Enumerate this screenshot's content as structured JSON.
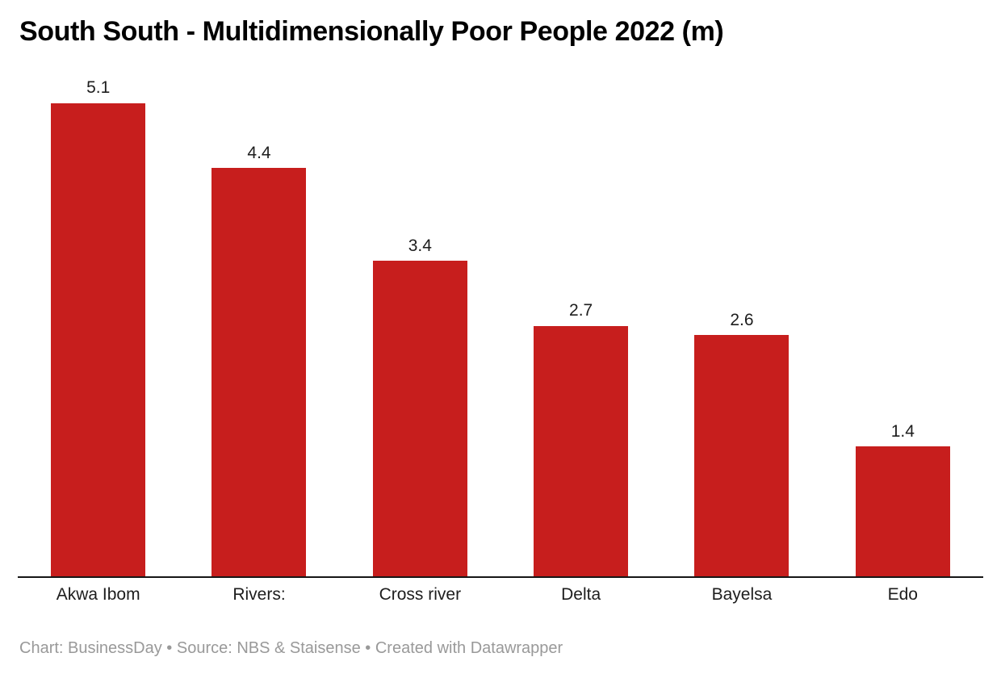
{
  "chart_data": {
    "type": "bar",
    "title": "South South - Multidimensionally Poor People 2022 (m)",
    "categories": [
      "Akwa Ibom",
      "Rivers:",
      "Cross river",
      "Delta",
      "Bayelsa",
      "Edo"
    ],
    "values": [
      5.1,
      4.4,
      3.4,
      2.7,
      2.6,
      1.4
    ],
    "xlabel": "",
    "ylabel": "",
    "ylim": [
      0,
      5.4
    ],
    "grid": false,
    "legend": false,
    "value_labels": true,
    "colors": {
      "bar": "#c71e1d",
      "axis": "#161616",
      "label_text": "#1d1d1d",
      "footer_text": "#999999"
    }
  },
  "footer": {
    "attribution": "Chart: BusinessDay • Source: NBS & Staisense • Created with Datawrapper"
  }
}
